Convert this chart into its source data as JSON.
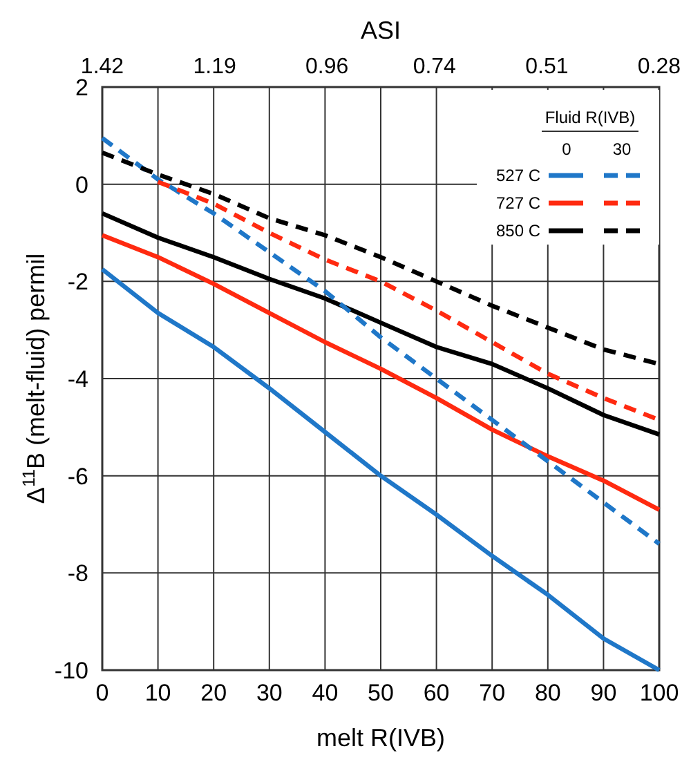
{
  "chart_data": {
    "type": "line",
    "xlabel": "melt R(IVB)",
    "ylabel": "Δ$^{11}$B (melt-fluid) permil",
    "x2label": "ASI",
    "legend_title": "Fluid R(IVB)",
    "annotations": [
      "0",
      "30"
    ],
    "x": [
      0,
      10,
      20,
      30,
      40,
      50,
      60,
      70,
      80,
      90,
      100
    ],
    "series": [
      {
        "name": "527 C",
        "color": "#1f77c8",
        "line_style": "solid",
        "values": [
          -1.75,
          -2.65,
          -3.35,
          -4.2,
          -5.1,
          -6.0,
          -6.8,
          -7.65,
          -8.45,
          -9.35,
          -10.0
        ]
      },
      {
        "name": "727 C",
        "color": "#ff2a10",
        "line_style": "solid",
        "values": [
          -1.05,
          -1.5,
          -2.05,
          -2.65,
          -3.25,
          -3.8,
          -4.4,
          -5.05,
          -5.6,
          -6.1,
          -6.7
        ]
      },
      {
        "name": "850 C",
        "color": "#000000",
        "line_style": "solid",
        "values": [
          -0.6,
          -1.1,
          -1.5,
          -1.95,
          -2.35,
          -2.85,
          -3.35,
          -3.7,
          -4.2,
          -4.75,
          -5.15
        ]
      },
      {
        "color": "#1f77c8",
        "line_style": "dashed",
        "values": [
          0.95,
          0.1,
          -0.6,
          -1.4,
          -2.2,
          -3.15,
          -4.0,
          -4.85,
          -5.7,
          -6.55,
          -7.4
        ]
      },
      {
        "color": "#ff2a10",
        "line_style": "dashed",
        "values": [
          null,
          0.05,
          -0.4,
          -1.0,
          -1.55,
          -2.0,
          -2.6,
          -3.25,
          -3.9,
          -4.4,
          -4.85
        ]
      },
      {
        "color": "#000000",
        "line_style": "dashed",
        "values": [
          0.65,
          0.2,
          -0.2,
          -0.7,
          -1.05,
          -1.5,
          -2.0,
          -2.5,
          -2.95,
          -3.4,
          -3.7
        ]
      }
    ],
    "xlim": [
      0,
      100
    ],
    "xticks": [
      0,
      10,
      20,
      30,
      40,
      50,
      60,
      70,
      80,
      90,
      100
    ],
    "ylim": [
      -10,
      2
    ],
    "yticks": [
      -10,
      -8,
      -6,
      -4,
      -2,
      0,
      2
    ],
    "x2lim": [
      1.42,
      0.28
    ],
    "x2ticks": [
      1.42,
      1.19,
      0.96,
      0.74,
      0.51,
      0.28
    ],
    "grid": true,
    "legend": "top right"
  }
}
